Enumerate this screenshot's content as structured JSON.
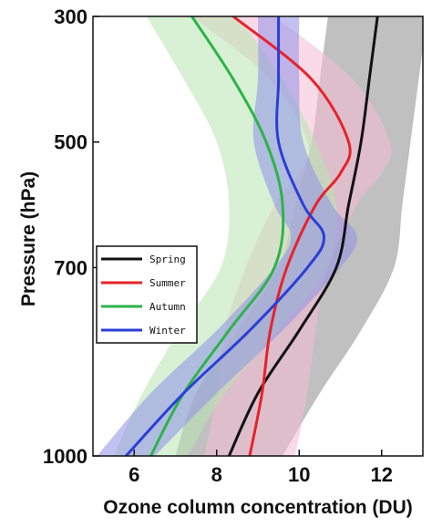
{
  "chart_data": {
    "type": "line",
    "title": "",
    "xlabel": "Ozone column concentration (DU)",
    "ylabel": "Pressure (hPa)",
    "xlim": [
      5,
      13
    ],
    "ylim": [
      1000,
      300
    ],
    "y_inverted": true,
    "x_ticks": [
      "6",
      "8",
      "10",
      "12"
    ],
    "y_ticks": [
      "300",
      "500",
      "700",
      "1000"
    ],
    "x_tick_values": [
      6,
      8,
      10,
      12
    ],
    "y_tick_values": [
      300,
      500,
      700,
      1000
    ],
    "legend_placement": "center-left",
    "grid": false,
    "series": [
      {
        "name": "Spring",
        "color": "#111111",
        "band_color": "#8c8c8c",
        "pressure": [
          300,
          400,
          500,
          600,
          700,
          800,
          900,
          1000
        ],
        "mean": [
          11.9,
          11.7,
          11.5,
          11.2,
          10.9,
          10.0,
          9.0,
          8.3
        ],
        "band_halfwidth": [
          1.2,
          1.2,
          1.2,
          1.3,
          1.4,
          1.5,
          1.5,
          1.3
        ]
      },
      {
        "name": "Summer",
        "color": "#e8222a",
        "band_color": "#f6bcd2",
        "pressure": [
          300,
          400,
          500,
          550,
          600,
          700,
          800,
          900,
          1000
        ],
        "mean": [
          8.4,
          10.3,
          11.2,
          11.0,
          10.4,
          9.7,
          9.3,
          9.1,
          8.8
        ],
        "band_halfwidth": [
          1.0,
          1.0,
          1.0,
          1.0,
          1.0,
          1.0,
          1.1,
          1.1,
          1.1
        ]
      },
      {
        "name": "Autumn",
        "color": "#2db34a",
        "band_color": "#b8e6b0",
        "pressure": [
          300,
          400,
          500,
          600,
          700,
          800,
          900,
          1000
        ],
        "mean": [
          7.4,
          8.4,
          9.2,
          9.6,
          9.4,
          8.3,
          7.2,
          6.4
        ],
        "band_halfwidth": [
          1.1,
          1.2,
          1.2,
          1.3,
          1.3,
          1.2,
          1.0,
          0.9
        ]
      },
      {
        "name": "Winter",
        "color": "#2a3fd6",
        "band_color": "#8f8fe8",
        "pressure": [
          300,
          400,
          500,
          600,
          650,
          700,
          800,
          900,
          1000
        ],
        "mean": [
          9.5,
          9.5,
          9.5,
          10.1,
          10.6,
          10.2,
          8.8,
          7.2,
          5.8
        ],
        "band_halfwidth": [
          0.5,
          0.5,
          0.6,
          0.7,
          0.8,
          0.8,
          0.8,
          0.8,
          0.7
        ]
      }
    ]
  }
}
